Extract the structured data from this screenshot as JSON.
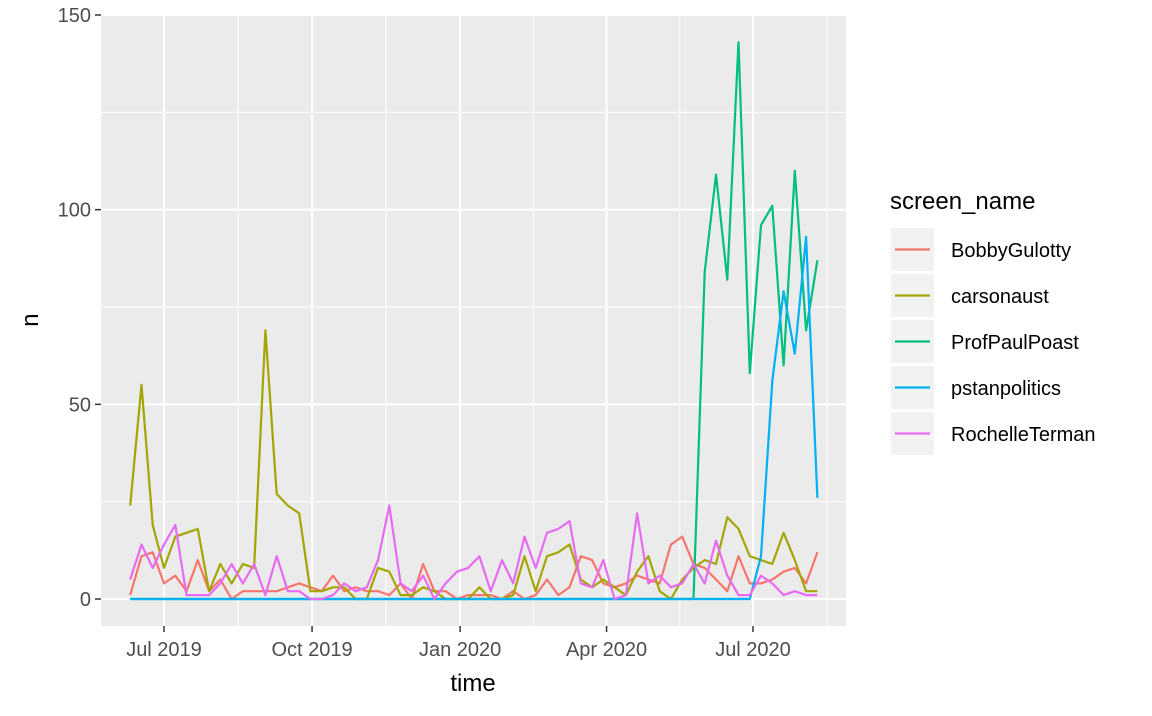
{
  "chart_data": {
    "type": "line",
    "xlabel": "time",
    "ylabel": "n",
    "ylim": [
      -6.5,
      150
    ],
    "y_ticks": [
      0,
      50,
      100,
      150
    ],
    "x_ticks": [
      {
        "label": "Jul 2019",
        "date": "2019-07-01"
      },
      {
        "label": "Oct 2019",
        "date": "2019-10-01"
      },
      {
        "label": "Jan 2020",
        "date": "2020-01-01"
      },
      {
        "label": "Apr 2020",
        "date": "2020-04-01"
      },
      {
        "label": "Jul 2020",
        "date": "2020-07-01"
      }
    ],
    "x_range": [
      "2019-05-30",
      "2020-08-31"
    ],
    "grid": true,
    "legend": {
      "title": "screen_name",
      "position": "right"
    },
    "dates": [
      "2019-06-10",
      "2019-06-17",
      "2019-06-24",
      "2019-07-01",
      "2019-07-08",
      "2019-07-15",
      "2019-07-22",
      "2019-07-29",
      "2019-08-05",
      "2019-08-12",
      "2019-08-19",
      "2019-08-26",
      "2019-09-02",
      "2019-09-09",
      "2019-09-16",
      "2019-09-23",
      "2019-09-30",
      "2019-10-07",
      "2019-10-14",
      "2019-10-21",
      "2019-10-28",
      "2019-11-04",
      "2019-11-11",
      "2019-11-18",
      "2019-11-25",
      "2019-12-02",
      "2019-12-09",
      "2019-12-16",
      "2019-12-23",
      "2019-12-30",
      "2020-01-06",
      "2020-01-13",
      "2020-01-20",
      "2020-01-27",
      "2020-02-03",
      "2020-02-10",
      "2020-02-17",
      "2020-02-24",
      "2020-03-02",
      "2020-03-09",
      "2020-03-16",
      "2020-03-23",
      "2020-03-30",
      "2020-04-06",
      "2020-04-13",
      "2020-04-20",
      "2020-04-27",
      "2020-05-04",
      "2020-05-11",
      "2020-05-18",
      "2020-05-25",
      "2020-06-01",
      "2020-06-08",
      "2020-06-15",
      "2020-06-22",
      "2020-06-29",
      "2020-07-06",
      "2020-07-13",
      "2020-07-20",
      "2020-07-27",
      "2020-08-03",
      "2020-08-10"
    ],
    "series": [
      {
        "name": "BobbyGulotty",
        "color": "#F8766D",
        "values": [
          1,
          11,
          12,
          4,
          6,
          2,
          10,
          2,
          5,
          0,
          2,
          2,
          2,
          2,
          3,
          4,
          3,
          2,
          6,
          2,
          3,
          2,
          2,
          1,
          4,
          0,
          9,
          2,
          2,
          0,
          1,
          1,
          1,
          0,
          2,
          0,
          1,
          5,
          1,
          3,
          11,
          10,
          4,
          3,
          4,
          6,
          5,
          4,
          14,
          16,
          9,
          8,
          5,
          2,
          11,
          4,
          4,
          5,
          7,
          8,
          4,
          12
        ]
      },
      {
        "name": "carsonaust",
        "color": "#A3A500",
        "values": [
          24,
          55,
          19,
          8,
          16,
          17,
          18,
          2,
          9,
          4,
          9,
          8,
          69,
          27,
          24,
          22,
          2,
          2,
          3,
          3,
          0,
          0,
          8,
          7,
          1,
          1,
          3,
          2,
          0,
          0,
          0,
          3,
          0,
          0,
          1,
          11,
          2,
          11,
          12,
          14,
          5,
          3,
          5,
          3,
          1,
          7,
          11,
          2,
          0,
          5,
          8,
          10,
          9,
          21,
          18,
          11,
          10,
          9,
          17,
          10,
          2,
          2
        ]
      },
      {
        "name": "ProfPaulPoast",
        "color": "#00BF7D",
        "values": [
          0,
          0,
          0,
          0,
          0,
          0,
          0,
          0,
          0,
          0,
          0,
          0,
          0,
          0,
          0,
          0,
          0,
          0,
          0,
          0,
          0,
          0,
          0,
          0,
          0,
          0,
          0,
          0,
          0,
          0,
          0,
          0,
          0,
          0,
          0,
          0,
          0,
          0,
          0,
          0,
          0,
          0,
          0,
          0,
          0,
          0,
          0,
          0,
          0,
          0,
          0,
          84,
          109,
          82,
          143,
          58,
          96,
          101,
          60,
          110,
          69,
          87
        ]
      },
      {
        "name": "pstanpolitics",
        "color": "#00B0F6",
        "values": [
          0,
          0,
          0,
          0,
          0,
          0,
          0,
          0,
          0,
          0,
          0,
          0,
          0,
          0,
          0,
          0,
          0,
          0,
          0,
          0,
          0,
          0,
          0,
          0,
          0,
          0,
          0,
          0,
          0,
          0,
          0,
          0,
          0,
          0,
          0,
          0,
          0,
          0,
          0,
          0,
          0,
          0,
          0,
          0,
          0,
          0,
          0,
          0,
          0,
          0,
          0,
          0,
          0,
          0,
          0,
          0,
          11,
          56,
          79,
          63,
          93,
          26
        ]
      },
      {
        "name": "RochelleTerman",
        "color": "#E76BF3",
        "values": [
          5,
          14,
          8,
          14,
          19,
          1,
          1,
          1,
          4,
          9,
          4,
          9,
          1,
          11,
          2,
          2,
          0,
          0,
          1,
          4,
          2,
          3,
          10,
          24,
          4,
          2,
          6,
          0,
          4,
          7,
          8,
          11,
          2,
          10,
          4,
          16,
          8,
          17,
          18,
          20,
          4,
          3,
          10,
          0,
          1,
          22,
          4,
          6,
          3,
          4,
          9,
          4,
          15,
          6,
          1,
          1,
          6,
          4,
          1,
          2,
          1,
          1
        ]
      }
    ]
  }
}
